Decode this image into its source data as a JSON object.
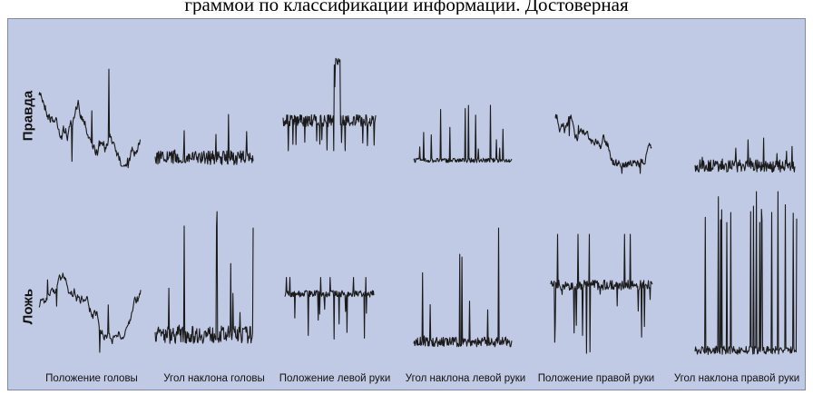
{
  "header": {
    "caption": "граммой по классификации информации. Достоверная"
  },
  "chart_data": {
    "type": "line",
    "title": "",
    "rows": [
      "Правда",
      "Ложь"
    ],
    "columns": [
      "Положение головы",
      "Угол наклона головы",
      "Положение левой руки",
      "Угол наклона левой руки",
      "Положение правой руки",
      "Угол наклона правой руки"
    ],
    "grid": false,
    "legend": "none",
    "line_color": "#1a1a1a"
  }
}
